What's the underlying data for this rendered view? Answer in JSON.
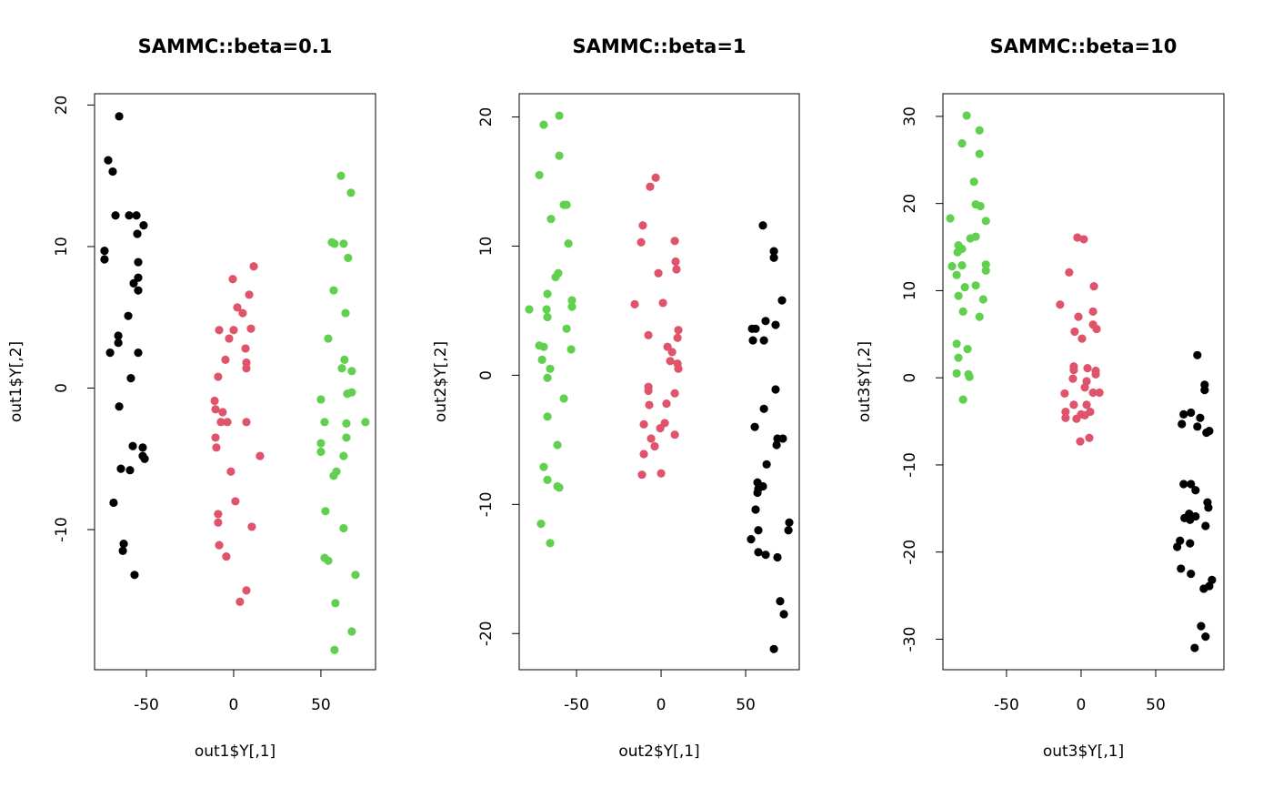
{
  "chart_data": [
    {
      "type": "scatter",
      "title": "SAMMC::beta=0.1",
      "xlabel": "out1$Y[,1]",
      "ylabel": "out1$Y[,2]",
      "xlim": [
        -79.7,
        81.3
      ],
      "ylim": [
        -19.9,
        20.8
      ],
      "xticks": [
        -50,
        0,
        50
      ],
      "yticks": [
        -10,
        0,
        10,
        20
      ],
      "series": [
        {
          "color": "#000000",
          "x": [
            -65.6,
            -71.9,
            -69.3,
            -67.7,
            -59.9,
            -55.7,
            -51.6,
            -74,
            -74,
            -55.2,
            -54.7,
            -54.7,
            -57.3,
            -54.7,
            -60.4,
            -66.1,
            -66.1,
            -70.8,
            -54.7,
            -58.9,
            -65.6,
            -57.8,
            -52.1,
            -52.1,
            -51,
            -64.6,
            -59.4,
            -68.8,
            -63,
            -63.5,
            -56.8
          ],
          "values": [
            19.2,
            16.1,
            15.3,
            12.2,
            12.2,
            12.2,
            11.5,
            9.7,
            9.1,
            10.9,
            8.9,
            7.8,
            7.4,
            6.9,
            5.1,
            3.7,
            3.2,
            2.5,
            2.5,
            0.7,
            -1.3,
            -4.1,
            -4.2,
            -4.8,
            -5,
            -5.7,
            -5.8,
            -8.1,
            -11,
            -11.5,
            -13.2
          ]
        },
        {
          "color": "#DF536B",
          "x": [
            -0.5,
            11.5,
            8.9,
            2.1,
            5.2,
            -8.3,
            0,
            9.9,
            -2.6,
            6.8,
            -4.7,
            7.3,
            7.3,
            -8.9,
            -10.9,
            -10.4,
            -6.3,
            -7.3,
            -3.6,
            7.3,
            -10.4,
            -9.9,
            15.1,
            -1.6,
            1,
            -8.9,
            -8.9,
            10.4,
            -8.3,
            -4.2,
            7.3,
            3.6
          ],
          "values": [
            7.7,
            8.6,
            6.6,
            5.7,
            5.3,
            4.1,
            4.1,
            4.2,
            3.5,
            2.8,
            2,
            1.8,
            1.4,
            0.8,
            -0.9,
            -1.5,
            -1.7,
            -2.4,
            -2.4,
            -2.4,
            -3.5,
            -4.2,
            -4.8,
            -5.9,
            -8,
            -8.9,
            -9.5,
            -9.8,
            -11.1,
            -11.9,
            -14.3,
            -15.1
          ]
        },
        {
          "color": "#61D04F",
          "x": [
            61.5,
            67.2,
            56.3,
            57.8,
            63,
            65.6,
            57.3,
            64.1,
            54.2,
            63.5,
            62,
            67.7,
            65.1,
            67.7,
            50,
            52.1,
            64.6,
            75.5,
            64.6,
            50,
            50,
            63,
            58.9,
            57.3,
            52.6,
            63,
            52.1,
            54.2,
            69.8,
            58.3,
            67.7,
            57.8
          ],
          "values": [
            15,
            13.8,
            10.3,
            10.2,
            10.2,
            9.2,
            6.9,
            5.3,
            3.5,
            2,
            1.4,
            1.2,
            -0.4,
            -0.3,
            -0.8,
            -2.4,
            -2.5,
            -2.4,
            -3.5,
            -3.9,
            -4.5,
            -4.8,
            -5.9,
            -6.2,
            -8.7,
            -9.9,
            -12,
            -12.2,
            -13.2,
            -15.2,
            -17.2,
            -18.5
          ]
        }
      ]
    },
    {
      "type": "scatter",
      "title": "SAMMC::beta=1",
      "xlabel": "out2$Y[,1]",
      "ylabel": "out2$Y[,2]",
      "xlim": [
        -83.9,
        81.7
      ],
      "ylim": [
        -22.8,
        21.8
      ],
      "xticks": [
        -50,
        0,
        50
      ],
      "yticks": [
        -20,
        -10,
        0,
        10,
        20
      ],
      "series": [
        {
          "color": "#61D04F",
          "x": [
            -60.2,
            -69.4,
            -72,
            -60.2,
            -55.9,
            -57.5,
            -65.1,
            -54.8,
            -60.8,
            -62.4,
            -67.2,
            -52.7,
            -78,
            -67.7,
            -52.7,
            -67.2,
            -55.9,
            -72,
            -69.4,
            -53.2,
            -70.4,
            -65.6,
            -67.2,
            -57.5,
            -67.2,
            -61.3,
            -69.4,
            -67.2,
            -61.3,
            -60.2,
            -71,
            -65.6
          ],
          "values": [
            20.1,
            19.4,
            15.5,
            17,
            13.2,
            13.2,
            12.1,
            10.2,
            7.9,
            7.6,
            6.3,
            5.8,
            5.1,
            5.1,
            5.3,
            4.5,
            3.6,
            2.3,
            2.2,
            2,
            1.2,
            0.5,
            -0.2,
            -1.8,
            -3.2,
            -5.4,
            -7.1,
            -8.1,
            -8.6,
            -8.7,
            -11.5,
            -13
          ]
        },
        {
          "color": "#DF536B",
          "x": [
            -3.2,
            -6.5,
            -10.8,
            -11.8,
            8.1,
            8.6,
            9.1,
            -1.6,
            -15.6,
            1.1,
            10.2,
            -7.5,
            9.7,
            3.8,
            6.5,
            5.4,
            9.7,
            10.2,
            -7.5,
            -7.5,
            8.1,
            3.2,
            -7,
            2.2,
            -10.2,
            -0.5,
            8.1,
            -5.9,
            -3.8,
            -10.2,
            0,
            -11.3
          ],
          "values": [
            15.3,
            14.6,
            11.6,
            10.3,
            10.4,
            8.8,
            8.2,
            7.9,
            5.5,
            5.6,
            3.5,
            3.1,
            2.9,
            2.2,
            1.8,
            1.1,
            0.9,
            0.5,
            -0.9,
            -1.2,
            -1.4,
            -2.2,
            -2.3,
            -3.7,
            -3.8,
            -4.1,
            -4.6,
            -4.9,
            -5.5,
            -6.1,
            -7.6,
            -7.7
          ]
        },
        {
          "color": "#000000",
          "x": [
            60.2,
            66.7,
            66.7,
            71.5,
            61.8,
            67.7,
            53.8,
            55.9,
            54.3,
            60.8,
            67.7,
            60.8,
            55.4,
            68.8,
            72,
            68.3,
            62.4,
            57,
            60.2,
            57.5,
            57,
            55.9,
            75.8,
            75.3,
            57.5,
            53.2,
            57.5,
            61.8,
            68.8,
            70.4,
            72.6,
            66.7
          ],
          "values": [
            11.6,
            9.6,
            9.1,
            5.8,
            4.2,
            3.9,
            3.6,
            3.6,
            2.7,
            2.7,
            -1.1,
            -2.6,
            -4,
            -4.9,
            -4.9,
            -5.4,
            -6.9,
            -8.3,
            -8.6,
            -8.8,
            -9.1,
            -10.4,
            -11.4,
            -12,
            -12,
            -12.7,
            -13.7,
            -13.9,
            -14.1,
            -17.5,
            -18.5,
            -21.2
          ]
        }
      ]
    },
    {
      "type": "scatter",
      "title": "SAMMC::beta=10",
      "xlabel": "out3$Y[,1]",
      "ylabel": "out3$Y[,2]",
      "xlim": [
        -92.6,
        95.7
      ],
      "ylim": [
        -33.5,
        32.6
      ],
      "xticks": [
        -50,
        0,
        50
      ],
      "yticks": [
        -30,
        -20,
        -10,
        0,
        10,
        20,
        30
      ],
      "series": [
        {
          "color": "#61D04F",
          "x": [
            -76.7,
            -68.1,
            -79.8,
            -68.1,
            -71.8,
            -70.6,
            -67.5,
            -87.7,
            -63.8,
            -70.6,
            -74.2,
            -82.2,
            -79.8,
            -82.8,
            -86.5,
            -79.8,
            -63.8,
            -63.8,
            -83.4,
            -77.9,
            -70.6,
            -82.2,
            -65.6,
            -79.1,
            -68.1,
            -83.4,
            -76.1,
            -82.2,
            -83.4,
            -75.5,
            -74.8,
            -79.1
          ],
          "values": [
            30.1,
            28.4,
            26.9,
            25.7,
            22.5,
            19.9,
            19.7,
            18.3,
            18,
            16.2,
            16,
            15.2,
            14.8,
            14.4,
            12.8,
            12.9,
            13,
            12.3,
            11.8,
            10.4,
            10.6,
            9.4,
            9,
            7.6,
            7,
            3.9,
            3.3,
            2.3,
            0.5,
            0.4,
            0.1,
            -2.5
          ]
        },
        {
          "color": "#DF536B",
          "x": [
            -2.5,
            1.8,
            -8,
            8.6,
            -14.1,
            8,
            -1.8,
            8,
            10.4,
            -4.3,
            0.6,
            -4.9,
            4.3,
            9.8,
            -4.9,
            9.8,
            -5.5,
            3.7,
            2.5,
            -11,
            8,
            12.3,
            -4.9,
            3.7,
            -10.4,
            6.1,
            0,
            2.5,
            -10.4,
            -3.1,
            5.5,
            -0.6
          ],
          "values": [
            16.1,
            15.9,
            12.1,
            10.5,
            8.4,
            7.6,
            7,
            6.1,
            5.6,
            5.3,
            4.5,
            1.3,
            1.1,
            0.8,
            0.9,
            0.4,
            -0.1,
            -0.4,
            -1.1,
            -1.8,
            -1.7,
            -1.7,
            -3.1,
            -3.1,
            -3.9,
            -3.9,
            -4.2,
            -4.3,
            -4.6,
            -4.7,
            -6.9,
            -7.3
          ]
        },
        {
          "color": "#000000",
          "x": [
            77.9,
            82.8,
            82.8,
            73.6,
            68.7,
            79.8,
            67.5,
            77.9,
            85.9,
            84,
            68.7,
            73.6,
            76.7,
            84.7,
            85.3,
            72.4,
            76.7,
            69.3,
            73,
            83.4,
            66.3,
            73,
            64.4,
            66.9,
            73.6,
            87.7,
            85.9,
            82.2,
            80.4,
            83.4,
            76.1
          ],
          "values": [
            2.6,
            -0.8,
            -1.4,
            -4,
            -4.2,
            -4.6,
            -5.3,
            -5.6,
            -6.1,
            -6.3,
            -12.2,
            -12.2,
            -12.9,
            -14.3,
            -14.9,
            -15.6,
            -15.9,
            -16.1,
            -16.3,
            -17,
            -18.7,
            -19,
            -19.4,
            -21.9,
            -22.5,
            -23.2,
            -23.9,
            -24.2,
            -28.5,
            -29.7,
            -31
          ]
        }
      ]
    }
  ]
}
